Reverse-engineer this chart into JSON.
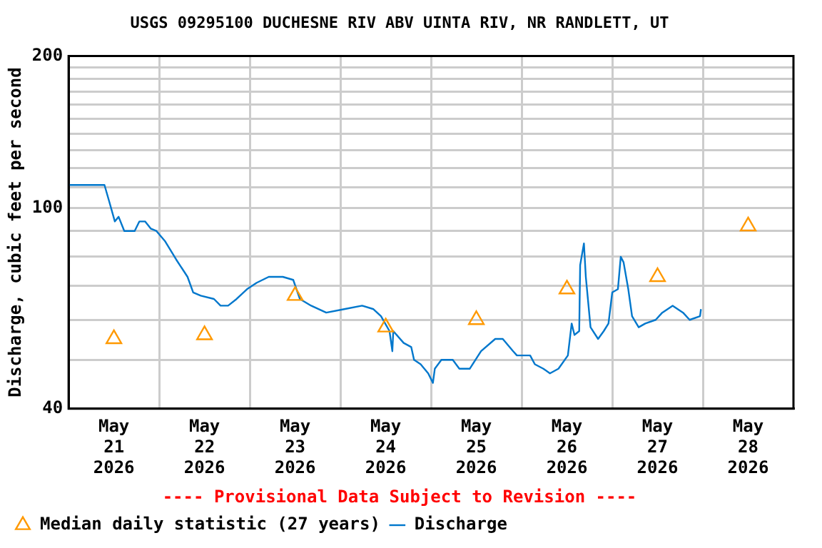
{
  "chart_data": {
    "type": "line",
    "title": "USGS 09295100 DUCHESNE RIV ABV UINTA RIV, NR RANDLETT, UT",
    "ylabel": "Discharge, cubic feet per second",
    "annotations": [
      "---- Provisional Data Subject to Revision ----"
    ],
    "xlim": [
      "2026-05-21T00:00",
      "2026-05-29T00:00"
    ],
    "xticks": [
      {
        "value": "2026-05-21T12:00",
        "label": "May\n21\n2026"
      },
      {
        "value": "2026-05-22T00:00",
        "label": null
      },
      {
        "value": "2026-05-22T12:00",
        "label": "May\n22\n2026"
      },
      {
        "value": "2026-05-23T00:00",
        "label": null
      },
      {
        "value": "2026-05-23T12:00",
        "label": "May\n23\n2026"
      },
      {
        "value": "2026-05-24T00:00",
        "label": null
      },
      {
        "value": "2026-05-24T12:00",
        "label": "May\n24\n2026"
      },
      {
        "value": "2026-05-25T00:00",
        "label": null
      },
      {
        "value": "2026-05-25T12:00",
        "label": "May\n25\n2026"
      },
      {
        "value": "2026-05-26T00:00",
        "label": null
      },
      {
        "value": "2026-05-26T12:00",
        "label": "May\n26\n2026"
      },
      {
        "value": "2026-05-27T00:00",
        "label": null
      },
      {
        "value": "2026-05-27T12:00",
        "label": "May\n27\n2026"
      },
      {
        "value": "2026-05-28T00:00",
        "label": null
      },
      {
        "value": "2026-05-28T12:00",
        "label": "May\n28\n2026"
      }
    ],
    "ylim": [
      40,
      200
    ],
    "yticks": [
      40,
      {
        "value": 50,
        "label": null
      },
      {
        "value": 60,
        "label": null
      },
      {
        "value": 70,
        "label": null
      },
      {
        "value": 80,
        "label": null
      },
      {
        "value": 90,
        "label": null
      },
      100,
      {
        "value": 110,
        "label": null
      },
      {
        "value": 120,
        "label": null
      },
      {
        "value": 130,
        "label": null
      },
      {
        "value": 140,
        "label": null
      },
      {
        "value": 150,
        "label": null
      },
      {
        "value": 160,
        "label": null
      },
      {
        "value": 170,
        "label": null
      },
      {
        "value": 180,
        "label": null
      },
      {
        "value": 190,
        "label": null
      },
      200
    ],
    "log": true,
    "grid": true,
    "legend": "bottom",
    "series": [
      {
        "name": "Median daily statistic (27 years)",
        "type": "scatter",
        "marker": "triangle",
        "color": "#ff9900",
        "x": [
          "2026-05-21T12:00",
          "2026-05-22T12:00",
          "2026-05-23T12:00",
          "2026-05-24T12:00",
          "2026-05-25T12:00",
          "2026-05-26T12:00",
          "2026-05-27T12:00",
          "2026-05-28T12:00"
        ],
        "values": [
          55,
          56,
          67,
          58,
          60,
          69,
          73,
          92
        ]
      },
      {
        "name": "Discharge",
        "type": "line",
        "marker": "none",
        "color": "#0077cc",
        "x": [
          "2026-05-21T00:15",
          "2026-05-21T09:30",
          "2026-05-21T10:45",
          "2026-05-21T12:15",
          "2026-05-21T13:15",
          "2026-05-21T14:45",
          "2026-05-21T17:30",
          "2026-05-21T18:45",
          "2026-05-21T20:15",
          "2026-05-21T21:45",
          "2026-05-21T23:15",
          "2026-05-22T01:30",
          "2026-05-22T04:30",
          "2026-05-22T07:30",
          "2026-05-22T09:00",
          "2026-05-22T11:00",
          "2026-05-22T14:30",
          "2026-05-22T16:15",
          "2026-05-22T18:15",
          "2026-05-22T20:30",
          "2026-05-22T23:15",
          "2026-05-23T01:45",
          "2026-05-23T05:00",
          "2026-05-23T08:45",
          "2026-05-23T11:30",
          "2026-05-23T13:15",
          "2026-05-23T16:15",
          "2026-05-23T20:15",
          "2026-05-24T01:00",
          "2026-05-24T05:45",
          "2026-05-24T08:45",
          "2026-05-24T10:45",
          "2026-05-24T13:00",
          "2026-05-24T13:45",
          "2026-05-24T14:00",
          "2026-05-24T16:45",
          "2026-05-24T18:45",
          "2026-05-24T19:30",
          "2026-05-24T21:15",
          "2026-05-24T23:15",
          "2026-05-25T00:30",
          "2026-05-25T01:00",
          "2026-05-25T02:45",
          "2026-05-25T05:45",
          "2026-05-25T07:30",
          "2026-05-25T10:15",
          "2026-05-25T13:15",
          "2026-05-25T17:00",
          "2026-05-25T19:00",
          "2026-05-25T21:45",
          "2026-05-25T22:45",
          "2026-05-26T02:15",
          "2026-05-26T03:30",
          "2026-05-26T05:45",
          "2026-05-26T07:30",
          "2026-05-26T09:45",
          "2026-05-26T12:15",
          "2026-05-26T13:15",
          "2026-05-26T14:00",
          "2026-05-26T15:15",
          "2026-05-26T15:30",
          "2026-05-26T16:30",
          "2026-05-26T17:00",
          "2026-05-26T18:15",
          "2026-05-26T20:15",
          "2026-05-26T21:45",
          "2026-05-26T23:00",
          "2026-05-27T00:00",
          "2026-05-27T01:30",
          "2026-05-27T02:15",
          "2026-05-27T03:00",
          "2026-05-27T04:15",
          "2026-05-27T05:15",
          "2026-05-27T07:00",
          "2026-05-27T08:45",
          "2026-05-27T11:30",
          "2026-05-27T13:15",
          "2026-05-27T16:00",
          "2026-05-27T18:45",
          "2026-05-27T20:30",
          "2026-05-27T23:15",
          "2026-05-27T23:30"
        ],
        "values": [
          111,
          111,
          103,
          94,
          96,
          90,
          90,
          94,
          94,
          91,
          90,
          86,
          79,
          73,
          68,
          67,
          66,
          64,
          64,
          66,
          69,
          71,
          73,
          73,
          72,
          66,
          64,
          62,
          63,
          64,
          63,
          61,
          57,
          52,
          57,
          54,
          53,
          50,
          49,
          47,
          45,
          48,
          50,
          50,
          48,
          48,
          52,
          55,
          55,
          52,
          51,
          51,
          49,
          48,
          47,
          48,
          51,
          59,
          56,
          57,
          77,
          85,
          73,
          58,
          55,
          57,
          59,
          68,
          69,
          80,
          78,
          69,
          61,
          58,
          59,
          60,
          62,
          64,
          62,
          60,
          61,
          63
        ]
      }
    ]
  }
}
